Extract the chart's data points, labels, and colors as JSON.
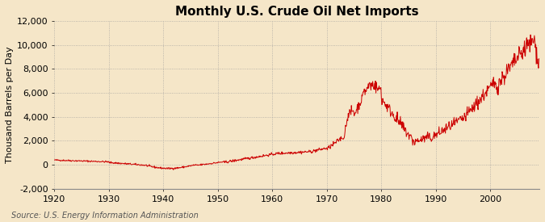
{
  "title": "Monthly U.S. Crude Oil Net Imports",
  "ylabel": "Thousand Barrels per Day",
  "source": "Source: U.S. Energy Information Administration",
  "line_color": "#cc0000",
  "background_color": "#f5e6c8",
  "plot_bg_color": "#f5e6c8",
  "grid_color": "#999999",
  "title_fontsize": 11,
  "label_fontsize": 8,
  "source_fontsize": 7,
  "xlim": [
    1920,
    2009
  ],
  "ylim": [
    -2000,
    12000
  ],
  "yticks": [
    -2000,
    0,
    2000,
    4000,
    6000,
    8000,
    10000,
    12000
  ],
  "xticks": [
    1920,
    1930,
    1940,
    1950,
    1960,
    1970,
    1980,
    1990,
    2000
  ]
}
